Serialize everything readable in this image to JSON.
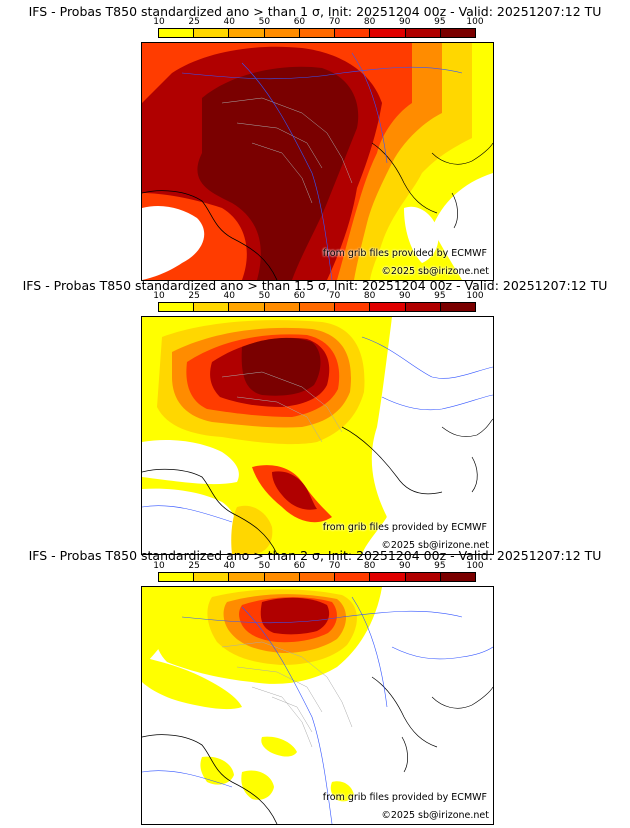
{
  "panels": [
    {
      "title": "IFS - Probas T850  standardized ano > than 1 σ, Init: 20251204 00z - Valid: 20251207:12 TU",
      "threshold": "1 σ"
    },
    {
      "title": "IFS - Probas T850  standardized ano > than 1.5 σ, Init: 20251204 00z - Valid: 20251207:12 TU",
      "threshold": "1.5 σ"
    },
    {
      "title": "IFS - Probas T850  standardized ano > than 2 σ, Init: 20251204 00z - Valid: 20251207:12 TU",
      "threshold": "2 σ"
    }
  ],
  "colorbar": {
    "levels": [
      "10",
      "25",
      "40",
      "50",
      "60",
      "70",
      "80",
      "90",
      "95",
      "100"
    ],
    "colors": [
      "#ffff00",
      "#ffd700",
      "#ffa500",
      "#ff8c00",
      "#ff6a00",
      "#ff3c00",
      "#e00000",
      "#b00000",
      "#7a0000"
    ]
  },
  "credits": {
    "source": "from grib files provided by ECMWF",
    "copyright": "©2025 sb@irizone.net"
  }
}
